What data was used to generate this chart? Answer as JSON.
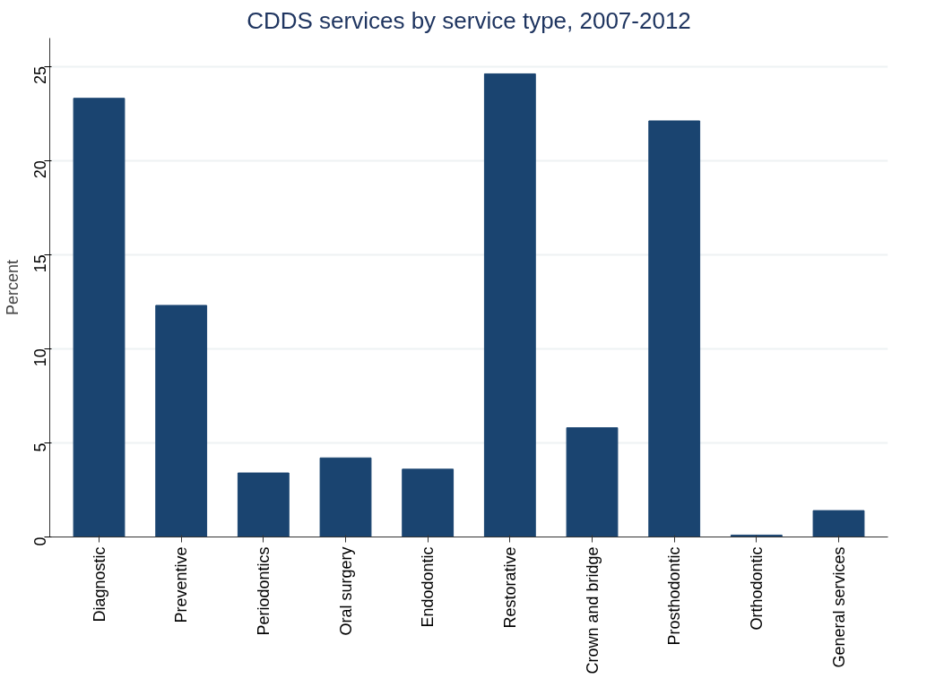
{
  "chart_data": {
    "type": "bar",
    "title": "CDDS services by service type, 2007-2012",
    "ylabel": "Percent",
    "categories": [
      "Diagnostic",
      "Preventive",
      "Periodontics",
      "Oral surgery",
      "Endodontic",
      "Restorative",
      "Crown and bridge",
      "Prosthodontic",
      "Orthodontic",
      "General services"
    ],
    "values": [
      23.3,
      12.3,
      3.4,
      4.2,
      3.6,
      24.6,
      5.8,
      22.1,
      0.1,
      1.4
    ],
    "color": "#1a4470",
    "ylim": [
      0,
      26.5
    ],
    "yticks": [
      0,
      5,
      10,
      15,
      20,
      25
    ],
    "grid": "y"
  }
}
